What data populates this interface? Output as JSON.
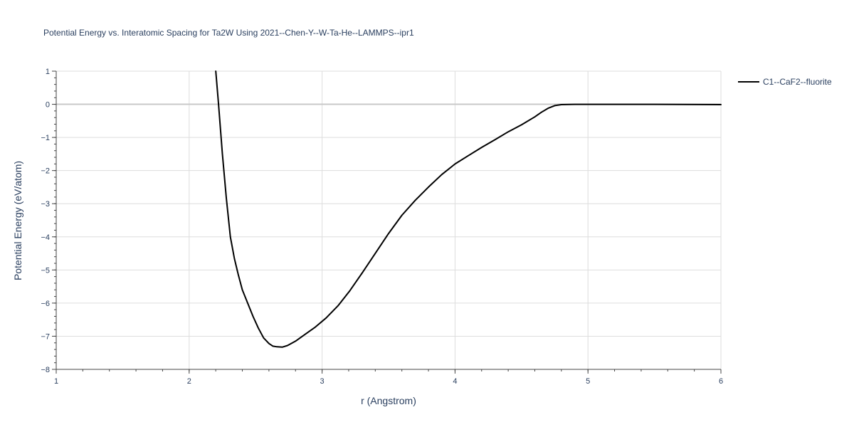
{
  "chart_data": {
    "type": "line",
    "title": "Potential Energy vs. Interatomic Spacing for Ta2W Using 2021--Chen-Y--W-Ta-He--LAMMPS--ipr1",
    "xlabel": "r (Angstrom)",
    "ylabel": "Potential Energy (eV/atom)",
    "xlim": [
      1,
      6
    ],
    "ylim": [
      -8,
      1
    ],
    "x_ticks": [
      1,
      2,
      3,
      4,
      5,
      6
    ],
    "y_ticks": [
      1,
      0,
      -1,
      -2,
      -3,
      -4,
      -5,
      -6,
      -7,
      -8
    ],
    "x_tick_labels": [
      "1",
      "2",
      "3",
      "4",
      "5",
      "6"
    ],
    "y_tick_labels": [
      "1",
      "0",
      "−1",
      "−2",
      "−3",
      "−4",
      "−5",
      "−6",
      "−7",
      "−8"
    ],
    "grid": true,
    "legend_position": "top-right",
    "series": [
      {
        "name": "C1--CaF2--fluorite",
        "color": "#000000",
        "x": [
          2.2,
          2.22,
          2.25,
          2.28,
          2.31,
          2.34,
          2.37,
          2.4,
          2.44,
          2.48,
          2.52,
          2.56,
          2.6,
          2.63,
          2.66,
          2.7,
          2.74,
          2.8,
          2.87,
          2.95,
          3.03,
          3.12,
          3.21,
          3.3,
          3.4,
          3.5,
          3.6,
          3.7,
          3.8,
          3.9,
          4.0,
          4.1,
          4.2,
          4.3,
          4.4,
          4.5,
          4.6,
          4.65,
          4.7,
          4.75,
          4.8,
          4.9,
          5.0,
          5.5,
          6.0
        ],
        "y": [
          1.0,
          0.05,
          -1.5,
          -2.85,
          -4.0,
          -4.65,
          -5.15,
          -5.6,
          -6.0,
          -6.4,
          -6.75,
          -7.05,
          -7.22,
          -7.3,
          -7.32,
          -7.33,
          -7.28,
          -7.15,
          -6.95,
          -6.72,
          -6.45,
          -6.08,
          -5.62,
          -5.1,
          -4.5,
          -3.9,
          -3.35,
          -2.9,
          -2.5,
          -2.12,
          -1.8,
          -1.55,
          -1.3,
          -1.07,
          -0.83,
          -0.62,
          -0.38,
          -0.24,
          -0.12,
          -0.04,
          -0.01,
          0.0,
          0.0,
          0.0,
          -0.01
        ]
      }
    ]
  }
}
